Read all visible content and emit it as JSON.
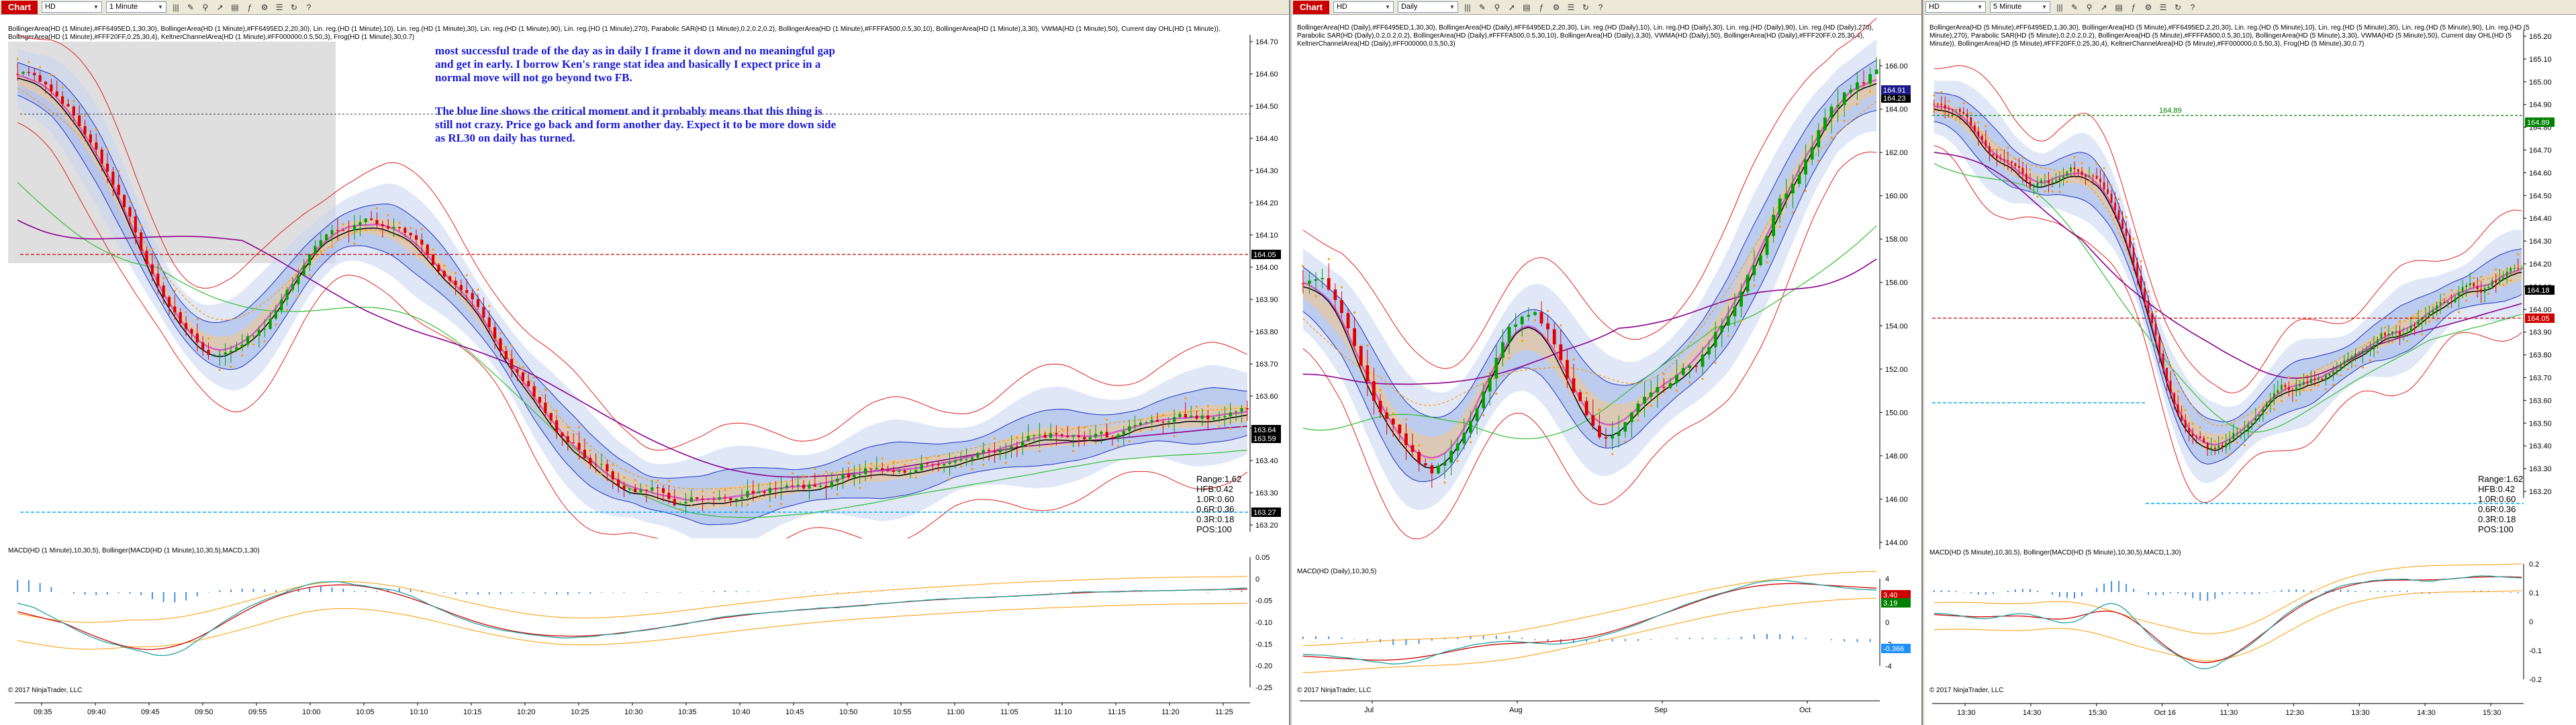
{
  "panes": [
    {
      "tab": "Chart",
      "instrument": "HD",
      "interval": "1 Minute",
      "indicators": "BollingerArea(HD (1 Minute),#FF6495ED,1,30,30), BollingerArea(HD (1 Minute),#FF6495ED,2,20,30), Lin. reg.(HD (1 Minute),10), Lin. reg.(HD (1 Minute),30), Lin. reg.(HD (1 Minute),90), Lin. reg.(HD (1 Minute),270), Parabolic SAR(HD (1 Minute),0.2,0.2,0.2), BollingerArea(HD (1 Minute),#FFFFA500,0.5,30,10), BollingerArea(HD (1 Minute),3,30), VWMA(HD (1 Minute),50), Current day OHL(HD (1 Minute)), BollingerArea(HD (1 Minute),#FFF20FF,0.25,30,4), KeltnerChannelArea(HD (1 Minute),#FF000000,0.5,50,3), Frog(HD (1 Minute),30,0.7)",
      "yticks": [
        "164.70",
        "164.60",
        "164.50",
        "164.40",
        "164.30",
        "164.20",
        "164.10",
        "164.00",
        "163.90",
        "163.80",
        "163.70",
        "163.60",
        "163.50",
        "163.40",
        "163.30",
        "163.20"
      ],
      "xticks": [
        "09:35",
        "09:40",
        "09:45",
        "09:50",
        "09:55",
        "10:00",
        "10:05",
        "10:10",
        "10:15",
        "10:20",
        "10:25",
        "10:30",
        "10:35",
        "10:40",
        "10:45",
        "10:50",
        "10:55",
        "11:00",
        "11:05",
        "11:10",
        "11:15",
        "11:20",
        "11:25"
      ],
      "price_tags": [
        {
          "text": "164.05",
          "color": "#000000"
        },
        {
          "text": "163.64",
          "color": "#000000"
        },
        {
          "text": "163.59",
          "color": "#000000"
        },
        {
          "text": "163.27",
          "color": "#000000"
        }
      ],
      "stats": [
        "Range:1.62",
        "HFB:0.42",
        "1.0R:0.60",
        "0.6R:0.36",
        "0.3R:0.18",
        "POS:100"
      ],
      "macd_label": "MACD(HD (1 Minute),10,30,5), Bollinger(MACD(HD (1 Minute),10,30,5),MACD,1,30)",
      "macd_yticks": [
        "0.05",
        "0",
        "-0.05",
        "-0.10",
        "-0.15",
        "-0.20",
        "-0.25"
      ],
      "copyright": "© 2017 NinjaTrader, LLC",
      "annotation1": "most successful trade of the day as in daily I frame it down and no meaningful gap and get in early. I borrow Ken's range stat idea and basically I expect price in a normal move will not go beyond two FB.",
      "annotation2": "The blue line shows the critical moment and it probably means that this thing is still not crazy. Price go back and form another day. Expect it to be more down side as RL30 on daily has turned."
    },
    {
      "tab": "Chart",
      "instrument": "HD",
      "interval": "Daily",
      "indicators": "BollingerArea(HD (Daily),#FF6495ED,1,30,30), BollingerArea(HD (Daily),#FF6495ED,2,20,30), Lin. reg.(HD (Daily),10), Lin. reg.(HD (Daily),30), Lin. reg.(HD (Daily),90), Lin. reg.(HD (Daily),270), Parabolic SAR(HD (Daily),0.2,0.2,0.2), BollingerArea(HD (Daily),#FFFFA500,0.5,30,10), BollingerArea(HD (Daily),3,30), VWMA(HD (Daily),50), BollingerArea(HD (Daily),#FFF20FF,0.25,30,4), KeltnerChannelArea(HD (Daily),#FF000000,0.5,50,3)",
      "yticks": [
        "166.00",
        "164.00",
        "162.00",
        "160.00",
        "158.00",
        "156.00",
        "154.00",
        "152.00",
        "150.00",
        "148.00",
        "146.00",
        "144.00"
      ],
      "xticks": [
        "Jul",
        "Aug",
        "Sep",
        "Oct"
      ],
      "price_tags": [
        {
          "text": "164.23",
          "color": "#000000"
        },
        {
          "text": "164.91",
          "color": "#1a1a8c"
        }
      ],
      "macd_label": "MACD(HD (Daily),10,30,5)",
      "macd_yticks": [
        "4",
        "2",
        "0",
        "-2",
        "-4"
      ],
      "macd_tags": [
        {
          "text": "3.40",
          "color": "#cc0000"
        },
        {
          "text": "3.19",
          "color": "#008000"
        },
        {
          "text": "-0.366",
          "color": "#1e90ff"
        }
      ],
      "copyright": "© 2017 NinjaTrader, LLC"
    },
    {
      "tab": "Chart",
      "instrument": "HD",
      "interval": "5 Minute",
      "indicators": "BollingerArea(HD (5 Minute),#FF6495ED,1,30,30), BollingerArea(HD (5 Minute),#FF6495ED,2,20,30), Lin. reg.(HD (5 Minute),10), Lin. reg.(HD (5 Minute),30), Lin. reg.(HD (5 Minute),90), Lin. reg.(HD (5 Minute),270), Parabolic SAR(HD (5 Minute),0.2,0.2,0.2), BollingerArea(HD (5 Minute),#FFFFA500,0.5,30,10), BollingerArea(HD (5 Minute),3,30), VWMA(HD (5 Minute),50), Current day OHL(HD (5 Minute)), BollingerArea(HD (5 Minute),#FFF20FF,0.25,30,4), KeltnerChannelArea(HD (5 Minute),#FF000000,0.5,50,3), Frog(HD (5 Minute),30,0.7)",
      "yticks": [
        "165.20",
        "165.10",
        "165.00",
        "164.90",
        "164.80",
        "164.70",
        "164.60",
        "164.50",
        "164.40",
        "164.30",
        "164.20",
        "164.10",
        "164.00",
        "163.90",
        "163.80",
        "163.70",
        "163.60",
        "163.50",
        "163.40",
        "163.30",
        "163.20"
      ],
      "xticks": [
        "13:30",
        "14:30",
        "15:30",
        "Oct 16",
        "11:30",
        "12:30",
        "13:30",
        "14:30",
        "15:30"
      ],
      "price_tags": [
        {
          "text": "164.89",
          "color": "#008000"
        },
        {
          "text": "164.18",
          "color": "#000000"
        },
        {
          "text": "164.05",
          "color": "#cc0000"
        }
      ],
      "level_label": "164.89",
      "stats": [
        "Range:1.62",
        "HFB:0.42",
        "1.0R:0.60",
        "0.6R:0.36",
        "0.3R:0.18",
        "POS:100"
      ],
      "macd_label": "MACD(HD (5 Minute),10,30,5), Bollinger(MACD(HD (5 Minute),10,30,5),MACD,1,30)",
      "macd_yticks": [
        "0.2",
        "0.1",
        "0",
        "-0.1",
        "-0.2"
      ],
      "copyright": "© 2017 NinjaTrader, LLC"
    }
  ],
  "colors": {
    "bull": "#00a000",
    "bear": "#e00000",
    "band_outer": "#c6d6f2",
    "band_inner": "#9fb5e8",
    "keltner": "#e8c89c",
    "purple": "#8b008b",
    "critical": "#00aaff",
    "dashed_red": "#cc0000"
  }
}
